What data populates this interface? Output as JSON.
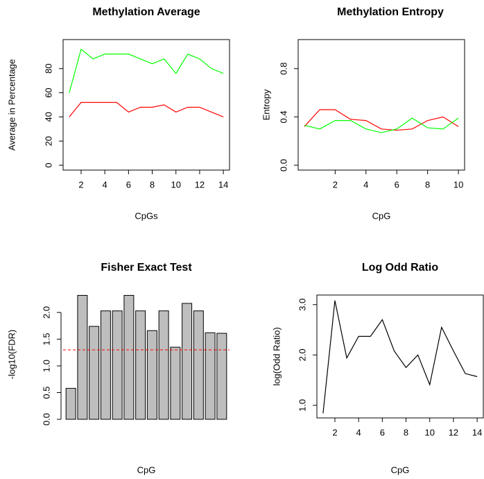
{
  "chart_data": [
    {
      "type": "line",
      "title": "Methylation Average",
      "x_label": "CpGs",
      "y_label": "Average in Percentage",
      "x": [
        1,
        2,
        3,
        4,
        5,
        6,
        7,
        8,
        9,
        10,
        11,
        12,
        13,
        14
      ],
      "series": [
        {
          "color": "#00ff00",
          "values": [
            60,
            96,
            88,
            92,
            92,
            92,
            88,
            84,
            88,
            76,
            92,
            88,
            80,
            76
          ]
        },
        {
          "color": "#ff0000",
          "values": [
            40,
            52,
            52,
            52,
            52,
            44,
            48,
            48,
            50,
            44,
            48,
            48,
            44,
            40
          ]
        }
      ],
      "xlim": [
        0.48,
        14.52
      ],
      "xticks": [
        2,
        4,
        6,
        8,
        10,
        12,
        14
      ],
      "ylim": [
        -4,
        104
      ],
      "yticks": [
        0,
        20,
        40,
        60,
        80
      ]
    },
    {
      "type": "line",
      "title": "Methylation Entropy",
      "x_label": "CpG",
      "y_label": "Entropy",
      "x": [
        0,
        1,
        2,
        3,
        4,
        5,
        6,
        7,
        8,
        9,
        10
      ],
      "series": [
        {
          "color": "#ff0000",
          "values": [
            0.32,
            0.46,
            0.46,
            0.38,
            0.37,
            0.3,
            0.29,
            0.3,
            0.37,
            0.4,
            0.32
          ]
        },
        {
          "color": "#00ff00",
          "values": [
            0.33,
            0.3,
            0.37,
            0.37,
            0.3,
            0.27,
            0.3,
            0.39,
            0.31,
            0.3,
            0.39
          ]
        }
      ],
      "xlim": [
        -0.4,
        10.4
      ],
      "xticks": [
        2,
        4,
        6,
        8,
        10
      ],
      "ylim": [
        -0.04,
        1.04
      ],
      "yticks": [
        {
          "value": 0,
          "label": "0.0"
        },
        0.4,
        0.8
      ]
    },
    {
      "type": "bar",
      "title": "Fisher Exact Test",
      "x_label": "CpG",
      "y_label": "-log10(FDR)",
      "values": [
        0.58,
        2.32,
        1.74,
        2.03,
        2.03,
        2.32,
        2.03,
        1.66,
        2.03,
        1.35,
        2.17,
        2.03,
        1.62,
        1.61
      ],
      "color": "#bebebe",
      "hline": {
        "value": 1.3,
        "color": "#ff0000"
      },
      "ylim": [
        0,
        2.43
      ],
      "yticks": [
        {
          "value": 0,
          "label": "0.0"
        },
        0.5,
        {
          "value": 1,
          "label": "1.0"
        },
        1.5,
        {
          "value": 2,
          "label": "2.0"
        }
      ]
    },
    {
      "type": "line",
      "title": "Log Odd Ratio",
      "x_label": "CpG",
      "y_label": "log(Odd Ratio)",
      "x": [
        1,
        2,
        3,
        4,
        5,
        6,
        7,
        8,
        9,
        10,
        11,
        12,
        13,
        14
      ],
      "series": [
        {
          "color": "#000000",
          "values": [
            0.84,
            3.08,
            1.94,
            2.37,
            2.37,
            2.7,
            2.08,
            1.75,
            2.0,
            1.41,
            2.55,
            2.08,
            1.63,
            1.57
          ]
        }
      ],
      "xlim": [
        0.48,
        14.52
      ],
      "xticks": [
        2,
        4,
        6,
        8,
        10,
        12,
        14
      ],
      "ylim": [
        0.75,
        3.19
      ],
      "yticks": [
        {
          "value": 1,
          "label": "1.0"
        },
        {
          "value": 2,
          "label": "2.0"
        },
        {
          "value": 3,
          "label": "3.0"
        }
      ]
    }
  ]
}
